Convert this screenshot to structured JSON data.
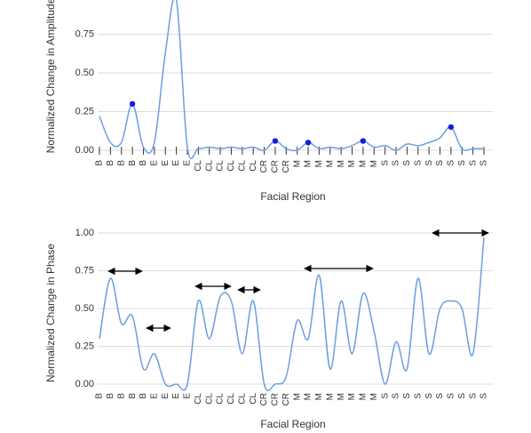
{
  "chart_data": [
    {
      "type": "line",
      "ylabel": "Normalized Change in Amplitude",
      "xlabel": "Facial Region",
      "categories": [
        "B",
        "B",
        "B",
        "B",
        "B",
        "E",
        "E",
        "E",
        "E",
        "CL",
        "CL",
        "CL",
        "CL",
        "CL",
        "CL",
        "CR",
        "CR",
        "CR",
        "M",
        "M",
        "M",
        "M",
        "M",
        "M",
        "M",
        "M",
        "S",
        "S",
        "S",
        "S",
        "S",
        "S",
        "S",
        "S",
        "S",
        "S"
      ],
      "series": [
        {
          "color": "#6a9fe0",
          "values": [
            0.22,
            0.05,
            0.05,
            0.3,
            0.02,
            0.05,
            0.63,
            0.97,
            0.02,
            0.01,
            0.02,
            0.01,
            0.02,
            0.01,
            0.02,
            0.0,
            0.06,
            0.01,
            0.0,
            0.05,
            0.01,
            0.02,
            0.01,
            0.03,
            0.06,
            0.02,
            0.03,
            0.0,
            0.04,
            0.03,
            0.05,
            0.08,
            0.15,
            0.01,
            0.01,
            0.01
          ]
        },
        {
          "color": "#1a1adf",
          "values": [
            null,
            null,
            null,
            0.3,
            null,
            null,
            null,
            null,
            null,
            null,
            null,
            null,
            null,
            null,
            null,
            null,
            0.06,
            null,
            null,
            0.05,
            null,
            null,
            null,
            null,
            0.06,
            null,
            null,
            null,
            null,
            null,
            null,
            null,
            0.15,
            null,
            null,
            null
          ]
        }
      ],
      "ylim": [
        0,
        1
      ],
      "yticks": [
        {
          "value": 0,
          "label": "0.00"
        },
        {
          "value": 0.25,
          "label": "0.25"
        },
        {
          "value": 0.5,
          "label": "0.50"
        },
        {
          "value": 0.75,
          "label": "0.75"
        }
      ],
      "grid": true
    },
    {
      "type": "line",
      "ylabel": "Normalized Change in Phase",
      "xlabel": "Facial Region",
      "categories": [
        "B",
        "B",
        "B",
        "B",
        "B",
        "E",
        "E",
        "E",
        "E",
        "CL",
        "CL",
        "CL",
        "CL",
        "CL",
        "CL",
        "CR",
        "CR",
        "CR",
        "M",
        "M",
        "M",
        "M",
        "M",
        "M",
        "M",
        "M",
        "S",
        "S",
        "S",
        "S",
        "S",
        "S",
        "S",
        "S",
        "S",
        "S"
      ],
      "series": [
        {
          "color": "#6a9fe0",
          "values": [
            0.3,
            0.7,
            0.4,
            0.45,
            0.1,
            0.2,
            0.0,
            0.0,
            0.0,
            0.55,
            0.3,
            0.58,
            0.55,
            0.2,
            0.55,
            0.0,
            0.0,
            0.05,
            0.42,
            0.3,
            0.72,
            0.1,
            0.55,
            0.2,
            0.6,
            0.35,
            0.0,
            0.28,
            0.1,
            0.7,
            0.2,
            0.5,
            0.55,
            0.5,
            0.2,
            0.97
          ]
        }
      ],
      "ylim": [
        0,
        1
      ],
      "yticks": [
        {
          "value": 0,
          "label": "0.00"
        },
        {
          "value": 0.25,
          "label": "0.25"
        },
        {
          "value": 0.5,
          "label": "0.50"
        },
        {
          "value": 0.75,
          "label": "0.75"
        },
        {
          "value": 1,
          "label": "1.00"
        }
      ],
      "grid": true
    }
  ]
}
